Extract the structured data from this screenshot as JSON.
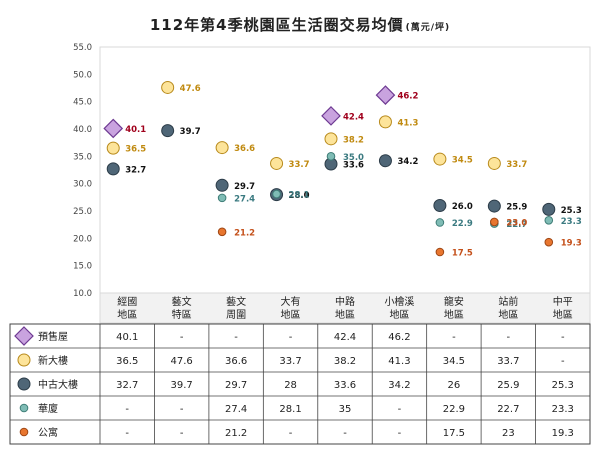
{
  "title": "112年第4季桃園區生活圈交易均價",
  "title_unit": "(萬元/坪)",
  "chart_data": {
    "type": "scatter",
    "title": "112年第4季桃園區生活圈交易均價",
    "unit": "(萬元/坪)",
    "categories": [
      [
        "經國",
        "地區"
      ],
      [
        "藝文",
        "特區"
      ],
      [
        "藝文",
        "周圍"
      ],
      [
        "大有",
        "地區"
      ],
      [
        "中路",
        "地區"
      ],
      [
        "小檜溪",
        "地區"
      ],
      [
        "龍安",
        "地區"
      ],
      [
        "站前",
        "地區"
      ],
      [
        "中平",
        "地區"
      ]
    ],
    "ylim": [
      10,
      55
    ],
    "yticks": [
      "10.0",
      "15.0",
      "20.0",
      "25.0",
      "30.0",
      "35.0",
      "40.0",
      "45.0",
      "50.0",
      "55.0"
    ],
    "grid": false,
    "series": [
      {
        "name": "預售屋",
        "marker": "diamond",
        "fill": "#c9a3df",
        "stroke": "#6e3a92",
        "label_color": "#a0001c",
        "values": [
          40.1,
          null,
          null,
          null,
          42.4,
          46.2,
          null,
          null,
          null
        ],
        "table": [
          "40.1",
          "-",
          "-",
          "-",
          "42.4",
          "46.2",
          "-",
          "-",
          "-"
        ]
      },
      {
        "name": "新大樓",
        "marker": "circle-large",
        "fill": "#fde49a",
        "stroke": "#b88a1c",
        "label_color": "#c08a10",
        "values": [
          36.5,
          47.6,
          36.6,
          33.7,
          38.2,
          41.3,
          34.5,
          33.7,
          null
        ],
        "table": [
          "36.5",
          "47.6",
          "36.6",
          "33.7",
          "38.2",
          "41.3",
          "34.5",
          "33.7",
          "-"
        ]
      },
      {
        "name": "中古大樓",
        "marker": "circle-large",
        "fill": "#4f6677",
        "stroke": "#2c3c48",
        "label_color": "#111111",
        "values": [
          32.7,
          39.7,
          29.7,
          28.0,
          33.6,
          34.2,
          26.0,
          25.9,
          25.3
        ],
        "table": [
          "32.7",
          "39.7",
          "29.7",
          "28",
          "33.6",
          "34.2",
          "26",
          "25.9",
          "25.3"
        ]
      },
      {
        "name": "華廈",
        "marker": "circle-small",
        "fill": "#7fbcb5",
        "stroke": "#3f7d77",
        "label_color": "#3a7a80",
        "values": [
          null,
          null,
          27.4,
          28.1,
          35.0,
          null,
          22.9,
          22.7,
          23.3
        ],
        "table": [
          "-",
          "-",
          "27.4",
          "28.1",
          "35",
          "-",
          "22.9",
          "22.7",
          "23.3"
        ]
      },
      {
        "name": "公寓",
        "marker": "circle-small",
        "fill": "#e8762f",
        "stroke": "#9e4614",
        "label_color": "#c4501a",
        "values": [
          null,
          null,
          21.2,
          null,
          null,
          null,
          17.5,
          23.0,
          19.3
        ],
        "table": [
          "-",
          "-",
          "21.2",
          "-",
          "-",
          "-",
          "17.5",
          "23",
          "19.3"
        ]
      }
    ]
  }
}
